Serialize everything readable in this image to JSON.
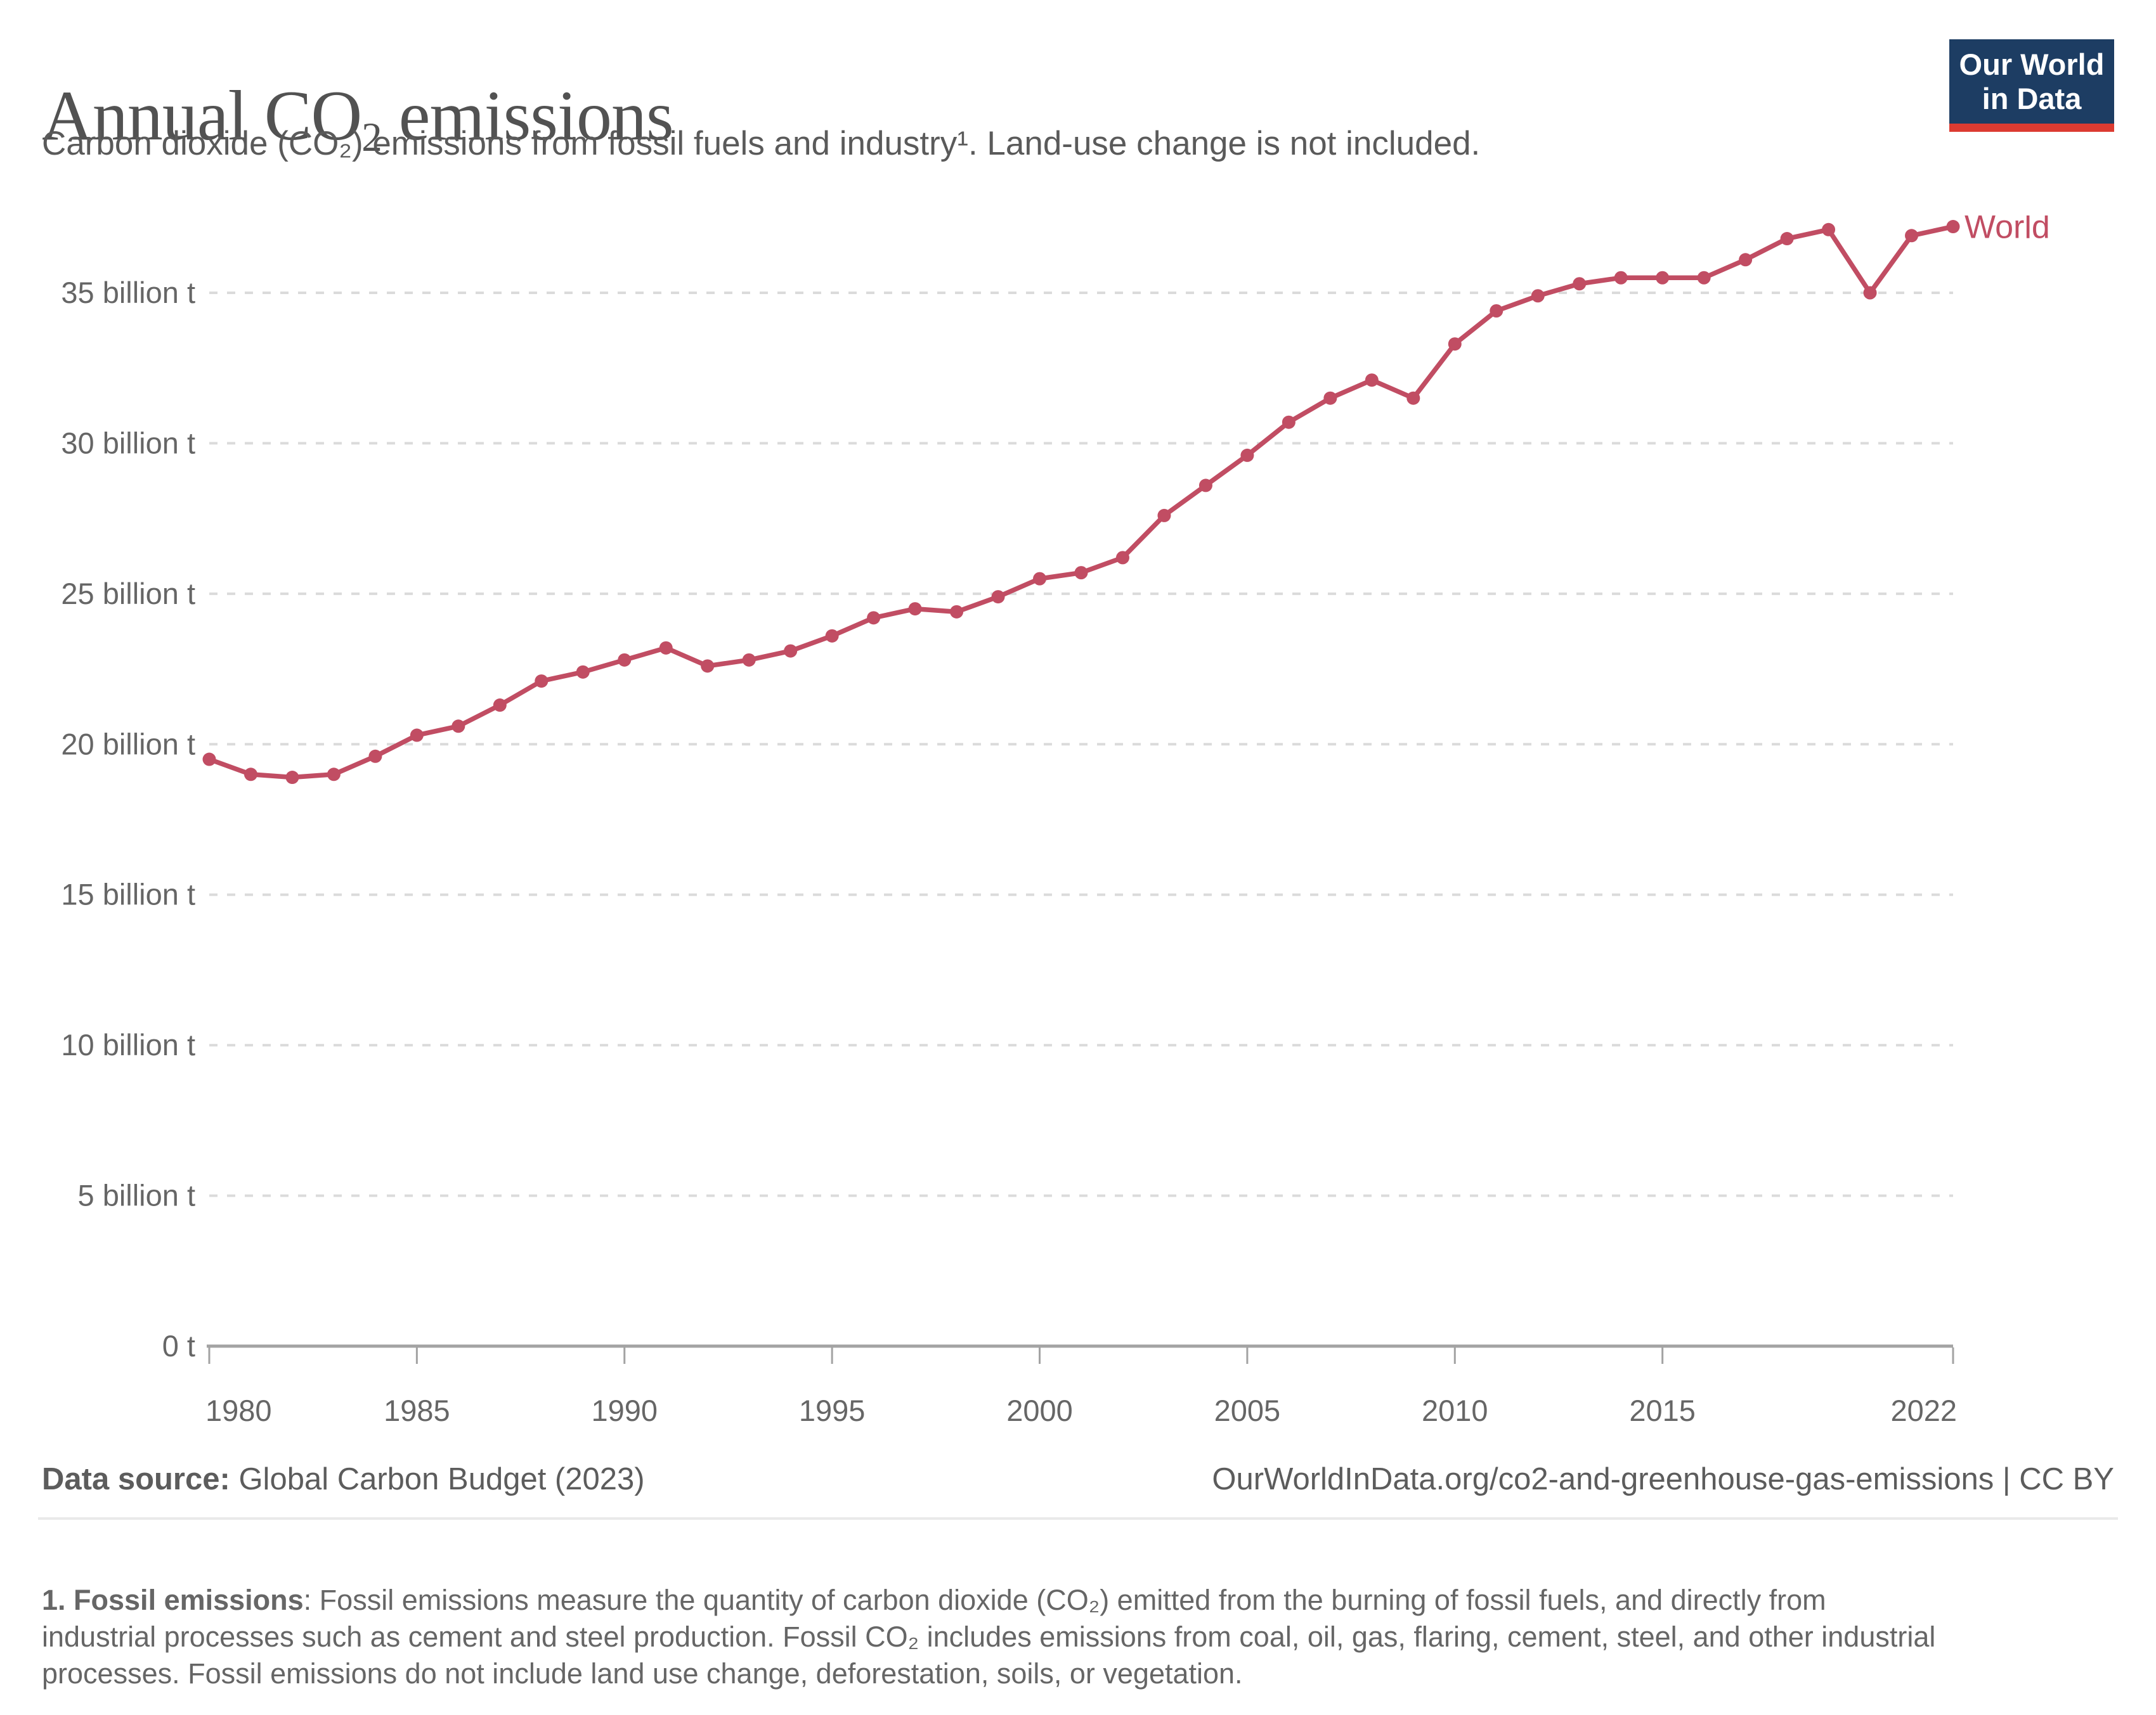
{
  "header": {
    "title_pre": "Annual CO",
    "title_sub": "2",
    "title_post": " emissions",
    "subtitle": "Carbon dioxide (CO₂) emissions from fossil fuels and industry¹. Land-use change is not included."
  },
  "logo": {
    "line1": "Our World",
    "line2": "in Data",
    "bg_color": "#1d3d63",
    "bar_color": "#dc3b31"
  },
  "chart_data": {
    "type": "line",
    "title": "Annual CO₂ emissions",
    "xlabel": "",
    "ylabel": "",
    "xlim": [
      1980,
      2022
    ],
    "ylim": [
      0,
      35
    ],
    "grid": "horizontal-dashed",
    "legend_position": "end-of-line",
    "x": [
      1980,
      1981,
      1982,
      1983,
      1984,
      1985,
      1986,
      1987,
      1988,
      1989,
      1990,
      1991,
      1992,
      1993,
      1994,
      1995,
      1996,
      1997,
      1998,
      1999,
      2000,
      2001,
      2002,
      2003,
      2004,
      2005,
      2006,
      2007,
      2008,
      2009,
      2010,
      2011,
      2012,
      2013,
      2014,
      2015,
      2016,
      2017,
      2018,
      2019,
      2020,
      2021,
      2022
    ],
    "series": [
      {
        "name": "World",
        "color": "#C14D63",
        "unit": "billion t",
        "values": [
          19.5,
          19.0,
          18.9,
          19.0,
          19.6,
          20.3,
          20.6,
          21.3,
          22.1,
          22.4,
          22.8,
          23.2,
          22.6,
          22.8,
          23.1,
          23.6,
          24.2,
          24.5,
          24.4,
          24.9,
          25.5,
          25.7,
          26.2,
          27.6,
          28.6,
          29.6,
          30.7,
          31.5,
          32.1,
          31.5,
          33.3,
          34.4,
          34.9,
          35.3,
          35.5,
          35.5,
          35.5,
          36.1,
          36.8,
          37.1,
          35.0,
          36.9,
          37.2
        ]
      }
    ],
    "x_ticks": [
      1980,
      1985,
      1990,
      1995,
      2000,
      2005,
      2010,
      2015,
      2022
    ],
    "y_ticks": [
      {
        "value": 0,
        "label": "0 t"
      },
      {
        "value": 5,
        "label": "5 billion t"
      },
      {
        "value": 10,
        "label": "10 billion t"
      },
      {
        "value": 15,
        "label": "15 billion t"
      },
      {
        "value": 20,
        "label": "20 billion t"
      },
      {
        "value": 25,
        "label": "25 billion t"
      },
      {
        "value": 30,
        "label": "30 billion t"
      },
      {
        "value": 35,
        "label": "35 billion t"
      }
    ],
    "colors": {
      "gridline": "#dbdbdb",
      "axis": "#a3a3a3",
      "tick_text": "#666666"
    }
  },
  "footer": {
    "source_label": "Data source:",
    "source_value": " Global Carbon Budget (2023)",
    "attribution": "OurWorldInData.org/co2-and-greenhouse-gas-emissions | CC BY"
  },
  "footnote": {
    "label": "1. Fossil emissions",
    "text": ": Fossil emissions measure the quantity of carbon dioxide (CO₂) emitted from the burning of fossil fuels, and directly from industrial processes such as cement and steel production. Fossil CO₂ includes emissions from coal, oil, gas, flaring, cement, steel, and other industrial processes. Fossil emissions do not include land use change, deforestation, soils, or vegetation."
  }
}
